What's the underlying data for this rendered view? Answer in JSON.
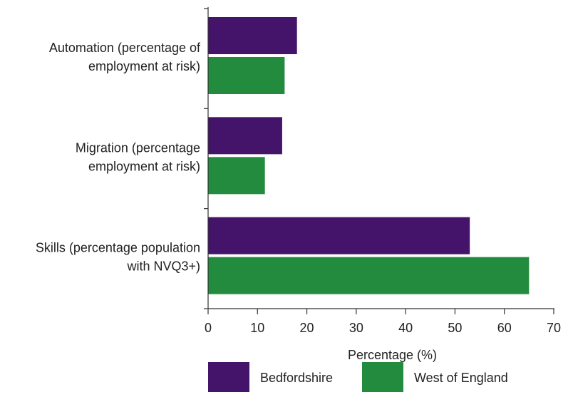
{
  "chart_data": {
    "type": "bar",
    "orientation": "horizontal",
    "categories": [
      [
        "Automation (percentage of",
        "employment at risk)"
      ],
      [
        "Migration (percentage",
        "employment at risk)"
      ],
      [
        "Skills (percentage population",
        "with NVQ3+)"
      ]
    ],
    "series": [
      {
        "name": "Bedfordshire",
        "color": "#44146b",
        "values": [
          18,
          15,
          53
        ]
      },
      {
        "name": "West of England",
        "color": "#238b3d",
        "values": [
          15.5,
          11.5,
          65
        ]
      }
    ],
    "xlabel": "Percentage (%)",
    "ylabel": "",
    "xlim": [
      0,
      70
    ],
    "xticks": [
      "0",
      "10",
      "20",
      "30",
      "40",
      "50",
      "60",
      "70"
    ],
    "grid": false,
    "legend_position": "bottom"
  }
}
